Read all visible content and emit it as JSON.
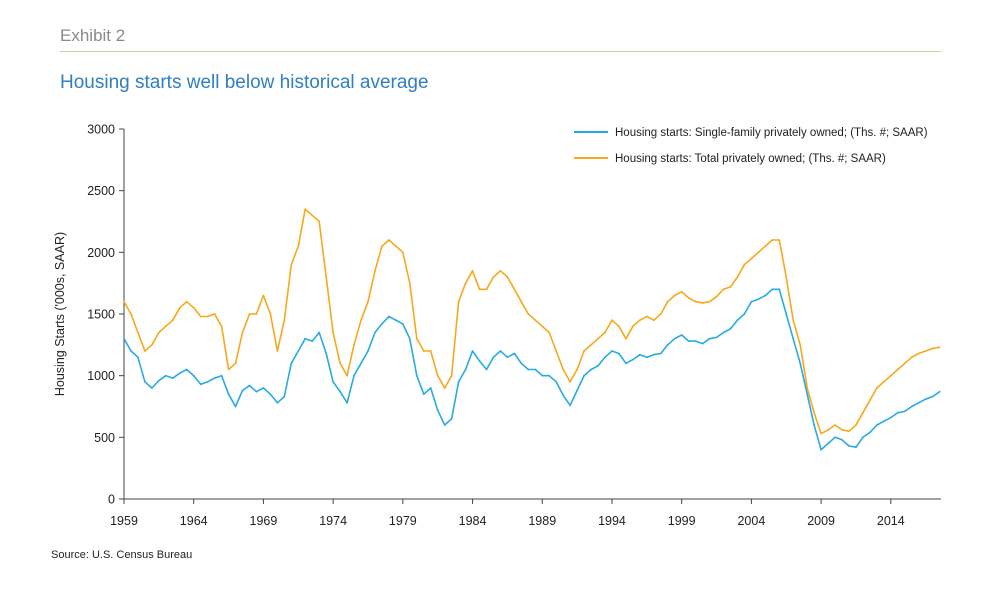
{
  "header": {
    "exhibit_label": "Exhibit 2",
    "title": "Housing starts well below historical average"
  },
  "footer": {
    "source": "Source: U.S. Census Bureau"
  },
  "colors": {
    "single_family": "#29ABE2",
    "total": "#F7A81B",
    "rule": "#c6d39a",
    "title": "#2f7fc3"
  },
  "chart_data": {
    "type": "line",
    "title": "Housing starts well below historical average",
    "xlabel": "",
    "ylabel": "Housing Starts ('000s, SAAR)",
    "xlim": [
      1959,
      2017.6
    ],
    "ylim": [
      0,
      3000
    ],
    "x_ticks": [
      1959,
      1964,
      1969,
      1974,
      1979,
      1984,
      1989,
      1994,
      1999,
      2004,
      2009,
      2014
    ],
    "y_ticks": [
      0,
      500,
      1000,
      1500,
      2000,
      2500,
      3000
    ],
    "grid": false,
    "legend_position": "top-right",
    "series": [
      {
        "name": "Housing starts: Single-family privately owned; (Ths. #; SAAR)",
        "color": "#29ABE2",
        "x": [
          1959.0,
          1959.5,
          1960.0,
          1960.5,
          1961.0,
          1961.5,
          1962.0,
          1962.5,
          1963.0,
          1963.5,
          1964.0,
          1964.5,
          1965.0,
          1965.5,
          1966.0,
          1966.5,
          1967.0,
          1967.5,
          1968.0,
          1968.5,
          1969.0,
          1969.5,
          1970.0,
          1970.5,
          1971.0,
          1971.5,
          1972.0,
          1972.5,
          1973.0,
          1973.5,
          1974.0,
          1974.5,
          1975.0,
          1975.5,
          1976.0,
          1976.5,
          1977.0,
          1977.5,
          1978.0,
          1978.5,
          1979.0,
          1979.5,
          1980.0,
          1980.5,
          1981.0,
          1981.5,
          1982.0,
          1982.5,
          1983.0,
          1983.5,
          1984.0,
          1984.5,
          1985.0,
          1985.5,
          1986.0,
          1986.5,
          1987.0,
          1987.5,
          1988.0,
          1988.5,
          1989.0,
          1989.5,
          1990.0,
          1990.5,
          1991.0,
          1991.5,
          1992.0,
          1992.5,
          1993.0,
          1993.5,
          1994.0,
          1994.5,
          1995.0,
          1995.5,
          1996.0,
          1996.5,
          1997.0,
          1997.5,
          1998.0,
          1998.5,
          1999.0,
          1999.5,
          2000.0,
          2000.5,
          2001.0,
          2001.5,
          2002.0,
          2002.5,
          2003.0,
          2003.5,
          2004.0,
          2004.5,
          2005.0,
          2005.5,
          2006.0,
          2006.5,
          2007.0,
          2007.5,
          2008.0,
          2008.5,
          2009.0,
          2009.5,
          2010.0,
          2010.5,
          2011.0,
          2011.5,
          2012.0,
          2012.5,
          2013.0,
          2013.5,
          2014.0,
          2014.5,
          2015.0,
          2015.5,
          2016.0,
          2016.5,
          2017.0,
          2017.5
        ],
        "values": [
          1300,
          1200,
          1150,
          950,
          900,
          960,
          1000,
          980,
          1020,
          1050,
          1000,
          930,
          950,
          980,
          1000,
          850,
          750,
          880,
          920,
          870,
          900,
          850,
          780,
          830,
          1100,
          1200,
          1300,
          1280,
          1350,
          1180,
          950,
          870,
          780,
          1000,
          1100,
          1200,
          1350,
          1420,
          1480,
          1450,
          1420,
          1300,
          1000,
          850,
          900,
          720,
          600,
          650,
          950,
          1050,
          1200,
          1120,
          1050,
          1150,
          1200,
          1150,
          1180,
          1100,
          1050,
          1050,
          1000,
          1000,
          950,
          840,
          760,
          880,
          1000,
          1050,
          1080,
          1150,
          1200,
          1180,
          1100,
          1130,
          1170,
          1150,
          1170,
          1180,
          1250,
          1300,
          1330,
          1280,
          1280,
          1260,
          1300,
          1310,
          1350,
          1380,
          1450,
          1500,
          1600,
          1620,
          1650,
          1700,
          1700,
          1500,
          1300,
          1100,
          850,
          600,
          400,
          450,
          500,
          480,
          430,
          420,
          500,
          540,
          600,
          630,
          660,
          700,
          710,
          750,
          780,
          810,
          830,
          870
        ]
      },
      {
        "name": "Housing starts: Total privately owned; (Ths. #; SAAR)",
        "color": "#F7A81B",
        "x": [
          1959.0,
          1959.5,
          1960.0,
          1960.5,
          1961.0,
          1961.5,
          1962.0,
          1962.5,
          1963.0,
          1963.5,
          1964.0,
          1964.5,
          1965.0,
          1965.5,
          1966.0,
          1966.5,
          1967.0,
          1967.5,
          1968.0,
          1968.5,
          1969.0,
          1969.5,
          1970.0,
          1970.5,
          1971.0,
          1971.5,
          1972.0,
          1972.5,
          1973.0,
          1973.5,
          1974.0,
          1974.5,
          1975.0,
          1975.5,
          1976.0,
          1976.5,
          1977.0,
          1977.5,
          1978.0,
          1978.5,
          1979.0,
          1979.5,
          1980.0,
          1980.5,
          1981.0,
          1981.5,
          1982.0,
          1982.5,
          1983.0,
          1983.5,
          1984.0,
          1984.5,
          1985.0,
          1985.5,
          1986.0,
          1986.5,
          1987.0,
          1987.5,
          1988.0,
          1988.5,
          1989.0,
          1989.5,
          1990.0,
          1990.5,
          1991.0,
          1991.5,
          1992.0,
          1992.5,
          1993.0,
          1993.5,
          1994.0,
          1994.5,
          1995.0,
          1995.5,
          1996.0,
          1996.5,
          1997.0,
          1997.5,
          1998.0,
          1998.5,
          1999.0,
          1999.5,
          2000.0,
          2000.5,
          2001.0,
          2001.5,
          2002.0,
          2002.5,
          2003.0,
          2003.5,
          2004.0,
          2004.5,
          2005.0,
          2005.5,
          2006.0,
          2006.5,
          2007.0,
          2007.5,
          2008.0,
          2008.5,
          2009.0,
          2009.5,
          2010.0,
          2010.5,
          2011.0,
          2011.5,
          2012.0,
          2012.5,
          2013.0,
          2013.5,
          2014.0,
          2014.5,
          2015.0,
          2015.5,
          2016.0,
          2016.5,
          2017.0,
          2017.5
        ],
        "values": [
          1600,
          1500,
          1350,
          1200,
          1250,
          1350,
          1400,
          1450,
          1550,
          1600,
          1550,
          1480,
          1480,
          1500,
          1400,
          1050,
          1100,
          1350,
          1500,
          1500,
          1650,
          1500,
          1200,
          1450,
          1900,
          2050,
          2350,
          2300,
          2250,
          1800,
          1350,
          1100,
          1000,
          1250,
          1450,
          1600,
          1850,
          2050,
          2100,
          2050,
          2000,
          1750,
          1300,
          1200,
          1200,
          1000,
          900,
          1000,
          1600,
          1750,
          1850,
          1700,
          1700,
          1800,
          1850,
          1800,
          1700,
          1600,
          1500,
          1450,
          1400,
          1350,
          1200,
          1050,
          950,
          1050,
          1200,
          1250,
          1300,
          1350,
          1450,
          1400,
          1300,
          1400,
          1450,
          1480,
          1450,
          1500,
          1600,
          1650,
          1680,
          1630,
          1600,
          1590,
          1600,
          1640,
          1700,
          1720,
          1800,
          1900,
          1950,
          2000,
          2050,
          2100,
          2100,
          1800,
          1450,
          1250,
          900,
          700,
          530,
          560,
          600,
          560,
          550,
          600,
          700,
          800,
          900,
          950,
          1000,
          1050,
          1100,
          1150,
          1180,
          1200,
          1220,
          1230
        ]
      }
    ]
  }
}
